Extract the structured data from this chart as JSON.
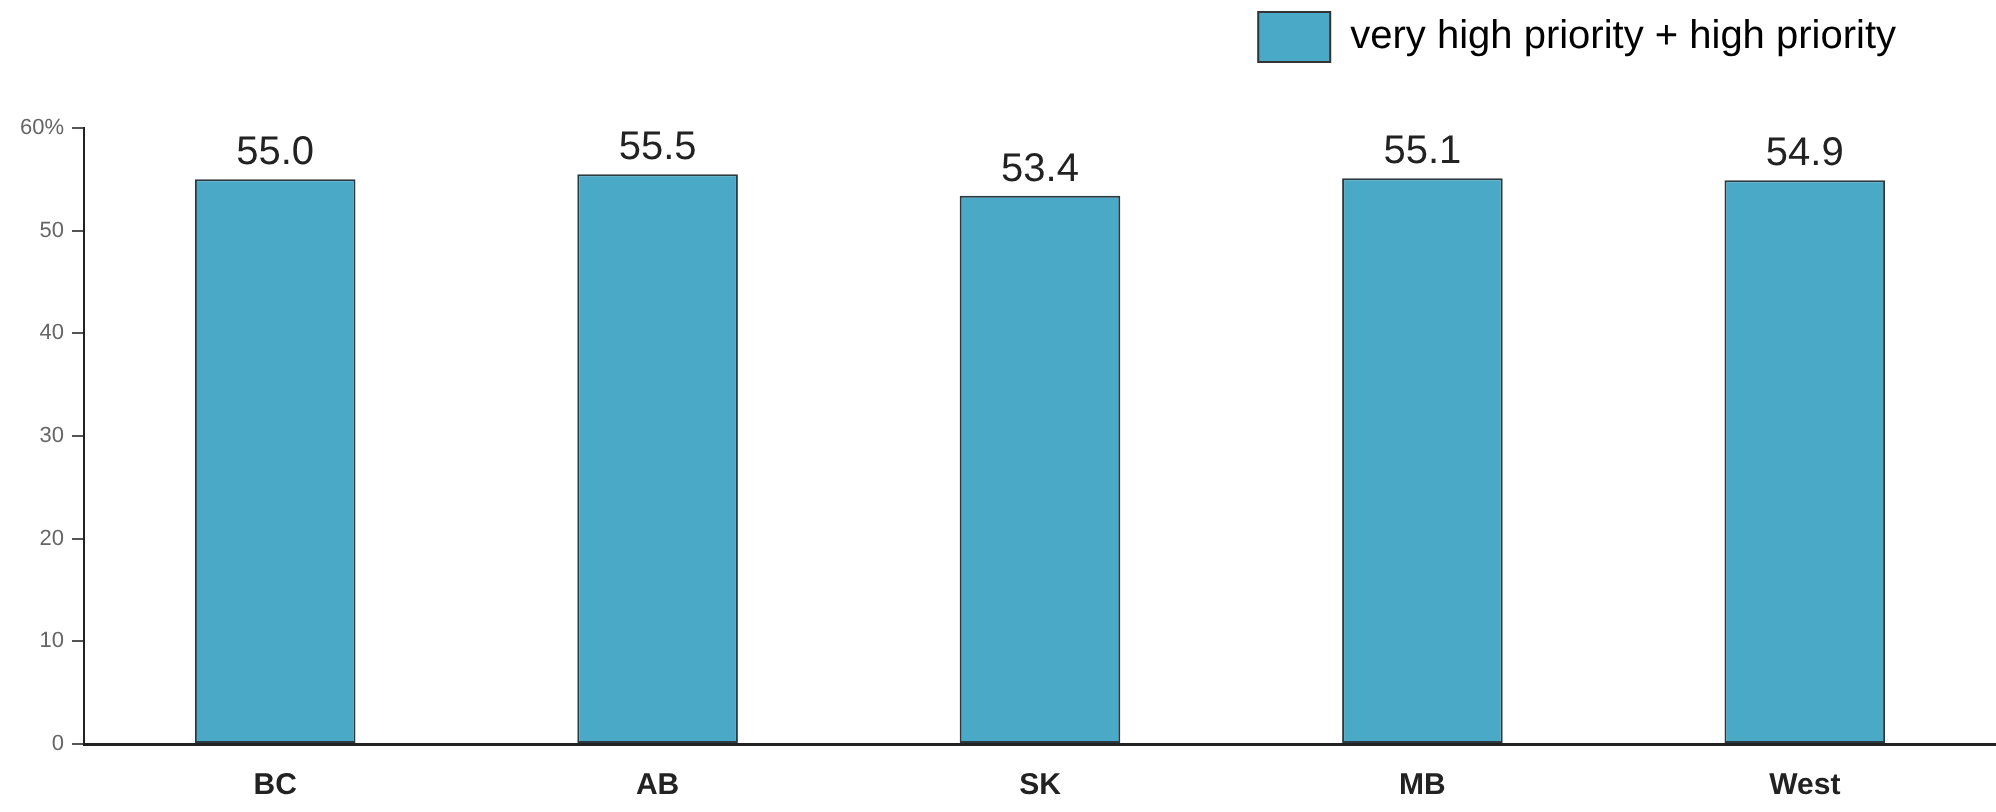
{
  "chart_data": {
    "type": "bar",
    "categories": [
      "BC",
      "AB",
      "SK",
      "MB",
      "West"
    ],
    "series": [
      {
        "name": "very high priority + high priority",
        "color": "#4aa9c7",
        "values": [
          55.0,
          55.5,
          53.4,
          55.1,
          54.9
        ],
        "value_labels": [
          "55.0",
          "55.5",
          "53.4",
          "55.1",
          "54.9"
        ]
      }
    ],
    "ylim": [
      0,
      60
    ],
    "yticks": [
      0,
      10,
      20,
      30,
      40,
      50,
      {
        "value": 60,
        "label": "60%"
      }
    ],
    "grid": false,
    "legend": "top right"
  }
}
